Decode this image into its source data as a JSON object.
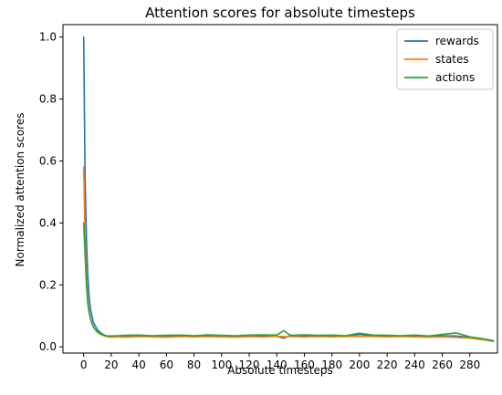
{
  "chart_data": {
    "type": "line",
    "title": "Attention scores for absolute timesteps",
    "xlabel": "Absolute timesteps",
    "ylabel": "Normalized attention scores",
    "xlim": [
      -15,
      300
    ],
    "ylim": [
      -0.02,
      1.04
    ],
    "xticks": [
      0,
      20,
      40,
      60,
      80,
      100,
      120,
      140,
      160,
      180,
      200,
      220,
      240,
      260,
      280
    ],
    "yticks": [
      0.0,
      0.2,
      0.4,
      0.6,
      0.8,
      1.0
    ],
    "ytick_labels": [
      "0.0",
      "0.2",
      "0.4",
      "0.6",
      "0.8",
      "1.0"
    ],
    "grid": false,
    "legend_position": "top-right",
    "series": [
      {
        "name": "rewards",
        "color": "#1f77b4",
        "x": [
          0,
          1,
          2,
          3,
          4,
          5,
          6,
          7,
          8,
          10,
          12,
          14,
          16,
          18,
          20,
          25,
          30,
          40,
          50,
          60,
          70,
          80,
          90,
          100,
          110,
          120,
          130,
          140,
          145,
          150,
          160,
          170,
          180,
          190,
          200,
          210,
          220,
          230,
          240,
          250,
          260,
          270,
          280,
          290,
          297
        ],
        "y": [
          1.0,
          0.55,
          0.35,
          0.23,
          0.16,
          0.12,
          0.1,
          0.08,
          0.07,
          0.055,
          0.046,
          0.04,
          0.036,
          0.034,
          0.033,
          0.034,
          0.033,
          0.035,
          0.034,
          0.033,
          0.035,
          0.034,
          0.036,
          0.035,
          0.034,
          0.036,
          0.035,
          0.034,
          0.028,
          0.037,
          0.035,
          0.036,
          0.034,
          0.035,
          0.04,
          0.035,
          0.036,
          0.034,
          0.035,
          0.034,
          0.036,
          0.035,
          0.03,
          0.025,
          0.02
        ]
      },
      {
        "name": "states",
        "color": "#ff7f0e",
        "x": [
          0,
          1,
          2,
          3,
          4,
          5,
          6,
          7,
          8,
          10,
          12,
          14,
          16,
          18,
          20,
          25,
          30,
          40,
          50,
          60,
          70,
          80,
          90,
          100,
          110,
          120,
          130,
          140,
          150,
          160,
          170,
          180,
          190,
          200,
          210,
          220,
          230,
          240,
          250,
          260,
          270,
          280,
          290,
          297
        ],
        "y": [
          0.58,
          0.35,
          0.22,
          0.15,
          0.11,
          0.09,
          0.075,
          0.065,
          0.057,
          0.047,
          0.041,
          0.037,
          0.034,
          0.032,
          0.031,
          0.032,
          0.031,
          0.033,
          0.032,
          0.031,
          0.033,
          0.032,
          0.033,
          0.032,
          0.031,
          0.033,
          0.032,
          0.034,
          0.033,
          0.032,
          0.033,
          0.032,
          0.033,
          0.034,
          0.033,
          0.032,
          0.033,
          0.032,
          0.031,
          0.032,
          0.03,
          0.028,
          0.022,
          0.018
        ]
      },
      {
        "name": "actions",
        "color": "#2ca02c",
        "x": [
          0,
          1,
          2,
          3,
          4,
          5,
          6,
          7,
          8,
          10,
          12,
          14,
          16,
          18,
          20,
          25,
          30,
          40,
          50,
          60,
          70,
          80,
          90,
          100,
          110,
          120,
          130,
          140,
          145,
          150,
          160,
          170,
          180,
          190,
          200,
          210,
          220,
          230,
          240,
          250,
          260,
          270,
          280,
          290,
          297
        ],
        "y": [
          0.4,
          0.3,
          0.2,
          0.14,
          0.11,
          0.09,
          0.075,
          0.066,
          0.058,
          0.049,
          0.043,
          0.039,
          0.036,
          0.035,
          0.035,
          0.036,
          0.037,
          0.038,
          0.036,
          0.037,
          0.038,
          0.036,
          0.039,
          0.037,
          0.036,
          0.038,
          0.039,
          0.038,
          0.052,
          0.037,
          0.039,
          0.037,
          0.038,
          0.036,
          0.044,
          0.038,
          0.037,
          0.036,
          0.038,
          0.035,
          0.04,
          0.045,
          0.032,
          0.026,
          0.018
        ]
      }
    ]
  }
}
